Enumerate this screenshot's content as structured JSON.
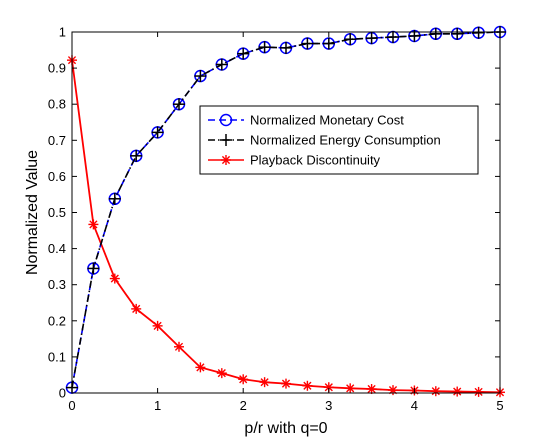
{
  "chart_data": {
    "type": "line",
    "title": "",
    "xlabel": "p/r with q=0",
    "ylabel": "Normalized Value",
    "xlim": [
      0,
      5
    ],
    "ylim": [
      0,
      1
    ],
    "xticks": [
      0,
      1,
      2,
      3,
      4,
      5
    ],
    "yticks": [
      0,
      0.1,
      0.2,
      0.3,
      0.4,
      0.5,
      0.6,
      0.7,
      0.8,
      0.9,
      1
    ],
    "grid": false,
    "legend_position": "center-right",
    "x": [
      0,
      0.25,
      0.5,
      0.75,
      1,
      1.25,
      1.5,
      1.75,
      2,
      2.25,
      2.5,
      2.75,
      3,
      3.25,
      3.5,
      3.75,
      4,
      4.25,
      4.5,
      4.75,
      5
    ],
    "series": [
      {
        "name": "Normalized Monetary Cost",
        "color": "#0000ff",
        "line_style": "dashed",
        "marker": "circle",
        "values": [
          0.015,
          0.345,
          0.538,
          0.657,
          0.722,
          0.8,
          0.878,
          0.91,
          0.94,
          0.958,
          0.956,
          0.968,
          0.968,
          0.98,
          0.983,
          0.986,
          0.989,
          0.995,
          0.995,
          0.998,
          1.0
        ]
      },
      {
        "name": "Normalized Energy Consumption",
        "color": "#000000",
        "line_style": "dash-dot",
        "marker": "plus",
        "values": [
          0.015,
          0.345,
          0.538,
          0.657,
          0.722,
          0.8,
          0.878,
          0.91,
          0.94,
          0.958,
          0.956,
          0.968,
          0.968,
          0.98,
          0.983,
          0.986,
          0.989,
          0.995,
          0.995,
          0.998,
          1.0
        ]
      },
      {
        "name": "Playback Discontinuity",
        "color": "#ff0000",
        "line_style": "solid",
        "marker": "asterisk",
        "values": [
          0.922,
          0.467,
          0.317,
          0.233,
          0.186,
          0.128,
          0.071,
          0.055,
          0.038,
          0.03,
          0.026,
          0.02,
          0.016,
          0.013,
          0.011,
          0.008,
          0.007,
          0.005,
          0.004,
          0.003,
          0.002
        ]
      }
    ]
  }
}
